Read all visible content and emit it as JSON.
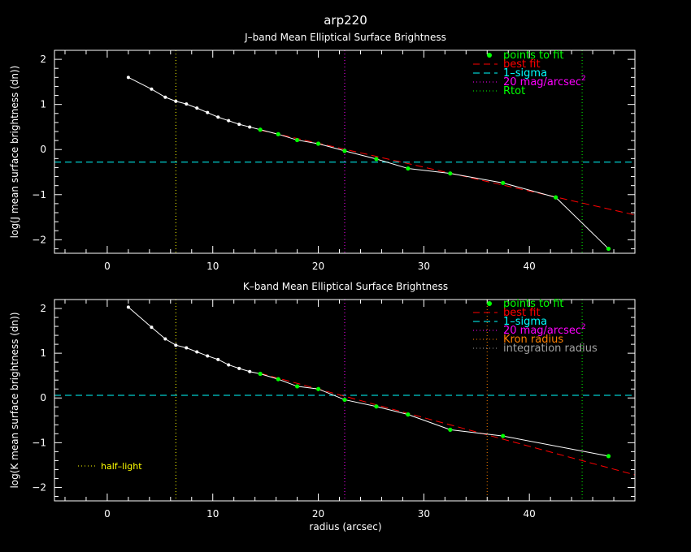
{
  "title": "arp220",
  "xlabel": "radius (arcsec)",
  "colors": {
    "background": "#000000",
    "axes": "#ffffff",
    "data_line": "#ffffff",
    "points_to_fit": "#00ff00",
    "best_fit": "#ff0000",
    "one_sigma": "#00ffff",
    "mag20": "#ff00ff",
    "rtot": "#00ff00",
    "half_light": "#ffff00",
    "kron": "#ff8000",
    "integration": "#a0a0a0"
  },
  "chart_data": [
    {
      "type": "scatter",
      "title": "J–band Mean Elliptical Surface Brightness",
      "ylabel": "log(J mean surface brightness (dn))",
      "xlim": [
        -5,
        50
      ],
      "ylim": [
        -2.3,
        2.2
      ],
      "xticks": [
        0,
        10,
        20,
        30,
        40
      ],
      "xtick_labels": [
        "0",
        "10",
        "20",
        "30",
        "40"
      ],
      "yticks": [
        2,
        1,
        0,
        -1,
        -2
      ],
      "ytick_labels": [
        "2",
        "1",
        "0",
        "−1",
        "−2"
      ],
      "legend": [
        {
          "label": "points to fit",
          "kind": "dot",
          "color": "#00ff00"
        },
        {
          "label": "best fit",
          "kind": "dash",
          "color": "#ff0000"
        },
        {
          "label": "1–sigma",
          "kind": "dash",
          "color": "#00ffff"
        },
        {
          "label": "20 mag/arcsec",
          "sup": "2",
          "kind": "dot-line",
          "color": "#ff00ff"
        },
        {
          "label": "Rtot",
          "kind": "dot-line",
          "color": "#00ff00"
        }
      ],
      "series": [
        {
          "x": [
            2.0,
            4.2,
            5.5,
            6.5,
            7.5,
            8.5,
            9.5,
            10.5,
            11.5,
            12.5,
            13.5,
            14.5,
            16.2,
            18.0,
            20.0,
            22.5,
            25.5,
            28.5,
            32.5,
            37.5,
            42.5,
            47.5
          ],
          "y": [
            1.6,
            1.34,
            1.16,
            1.07,
            1.01,
            0.92,
            0.82,
            0.72,
            0.64,
            0.56,
            0.5,
            0.44,
            0.34,
            0.21,
            0.13,
            -0.03,
            -0.21,
            -0.42,
            -0.53,
            -0.74,
            -1.06,
            -2.2
          ],
          "fit_from": 11
        }
      ],
      "fit_line": {
        "x": [
          14.5,
          50
        ],
        "y": [
          0.43,
          -1.45
        ]
      },
      "hlines": [
        {
          "y": -0.28,
          "color": "#00ffff"
        }
      ],
      "vlines": [
        {
          "x": 6.5,
          "color": "#ffff00"
        },
        {
          "x": 22.5,
          "color": "#ff00ff"
        },
        {
          "x": 45.0,
          "color": "#00ff00"
        }
      ]
    },
    {
      "type": "scatter",
      "title": "K–band Mean Elliptical Surface Brightness",
      "ylabel": "log(K mean surface brightness (dn))",
      "xlim": [
        -5,
        50
      ],
      "ylim": [
        -2.3,
        2.2
      ],
      "xticks": [
        0,
        10,
        20,
        30,
        40
      ],
      "xtick_labels": [
        "0",
        "10",
        "20",
        "30",
        "40"
      ],
      "yticks": [
        2,
        1,
        0,
        -1,
        -2
      ],
      "ytick_labels": [
        "2",
        "1",
        "0",
        "−1",
        "−2"
      ],
      "legend": [
        {
          "label": "points to fit",
          "kind": "dot",
          "color": "#00ff00"
        },
        {
          "label": "best fit",
          "kind": "dash",
          "color": "#ff0000"
        },
        {
          "label": "1–sigma",
          "kind": "dash",
          "color": "#00ffff"
        },
        {
          "label": "20 mag/arcsec",
          "sup": "2",
          "kind": "dot-line",
          "color": "#ff00ff"
        },
        {
          "label": "Kron radius",
          "kind": "dot-line",
          "color": "#ff8000"
        },
        {
          "label": "integration radius",
          "kind": "dot-line",
          "color": "#a0a0a0"
        }
      ],
      "annotation": {
        "label": "half–light",
        "color": "#ffff00"
      },
      "series": [
        {
          "x": [
            2.0,
            4.2,
            5.5,
            6.5,
            7.5,
            8.5,
            9.5,
            10.5,
            11.5,
            12.5,
            13.5,
            14.5,
            16.2,
            18.0,
            20.0,
            22.5,
            25.5,
            28.5,
            32.5,
            37.5,
            47.5
          ],
          "y": [
            2.03,
            1.58,
            1.32,
            1.18,
            1.12,
            1.03,
            0.94,
            0.86,
            0.74,
            0.66,
            0.59,
            0.54,
            0.42,
            0.26,
            0.2,
            -0.04,
            -0.19,
            -0.37,
            -0.71,
            -0.85,
            -1.3
          ],
          "fit_from": 11
        }
      ],
      "fit_line": {
        "x": [
          14.5,
          50
        ],
        "y": [
          0.55,
          -1.72
        ]
      },
      "hlines": [
        {
          "y": 0.06,
          "color": "#00ffff"
        }
      ],
      "vlines": [
        {
          "x": 6.5,
          "color": "#ffff00"
        },
        {
          "x": 22.5,
          "color": "#ff00ff"
        },
        {
          "x": 36.0,
          "color": "#ff8000"
        },
        {
          "x": 45.0,
          "color": "#00ff00"
        }
      ]
    }
  ]
}
